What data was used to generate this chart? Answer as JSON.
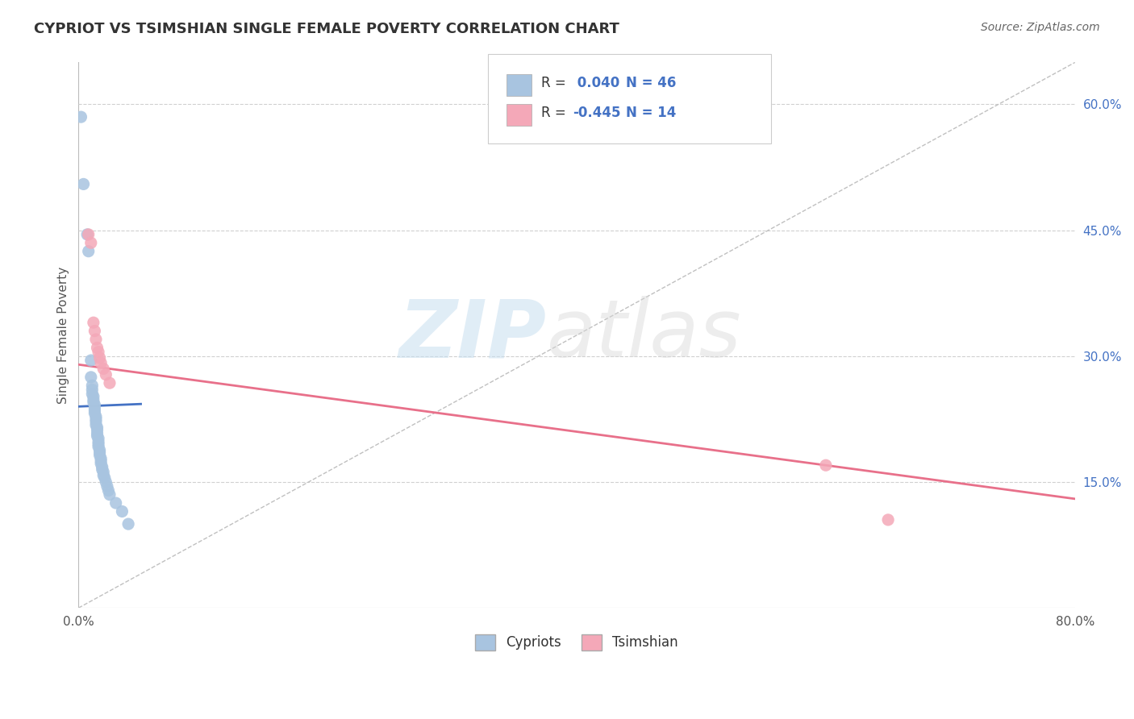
{
  "title": "CYPRIOT VS TSIMSHIAN SINGLE FEMALE POVERTY CORRELATION CHART",
  "source": "Source: ZipAtlas.com",
  "ylabel": "Single Female Poverty",
  "xlim": [
    0.0,
    0.8
  ],
  "ylim": [
    0.0,
    0.65
  ],
  "yticks_right": [
    0.15,
    0.3,
    0.45,
    0.6
  ],
  "ytick_labels_right": [
    "15.0%",
    "30.0%",
    "45.0%",
    "60.0%"
  ],
  "cypriot_R": 0.04,
  "cypriot_N": 46,
  "tsimshian_R": -0.445,
  "tsimshian_N": 14,
  "cypriot_color": "#a8c4e0",
  "tsimshian_color": "#f4a8b8",
  "cypriot_line_color": "#4472c4",
  "tsimshian_line_color": "#e8708a",
  "cypriot_x": [
    0.002,
    0.004,
    0.007,
    0.008,
    0.01,
    0.01,
    0.011,
    0.011,
    0.011,
    0.012,
    0.012,
    0.012,
    0.013,
    0.013,
    0.013,
    0.013,
    0.014,
    0.014,
    0.014,
    0.014,
    0.015,
    0.015,
    0.015,
    0.015,
    0.016,
    0.016,
    0.016,
    0.016,
    0.017,
    0.017,
    0.017,
    0.018,
    0.018,
    0.018,
    0.019,
    0.019,
    0.02,
    0.02,
    0.021,
    0.022,
    0.023,
    0.024,
    0.025,
    0.03,
    0.035,
    0.04
  ],
  "cypriot_y": [
    0.585,
    0.505,
    0.445,
    0.425,
    0.295,
    0.275,
    0.265,
    0.26,
    0.255,
    0.252,
    0.248,
    0.245,
    0.242,
    0.238,
    0.235,
    0.232,
    0.228,
    0.225,
    0.222,
    0.218,
    0.215,
    0.212,
    0.208,
    0.205,
    0.202,
    0.198,
    0.195,
    0.192,
    0.188,
    0.185,
    0.182,
    0.178,
    0.175,
    0.172,
    0.168,
    0.165,
    0.162,
    0.158,
    0.155,
    0.15,
    0.145,
    0.14,
    0.135,
    0.125,
    0.115,
    0.1
  ],
  "tsimshian_x": [
    0.008,
    0.01,
    0.012,
    0.013,
    0.014,
    0.015,
    0.016,
    0.017,
    0.018,
    0.02,
    0.022,
    0.025,
    0.6,
    0.65
  ],
  "tsimshian_y": [
    0.445,
    0.435,
    0.34,
    0.33,
    0.32,
    0.31,
    0.305,
    0.298,
    0.292,
    0.285,
    0.278,
    0.268,
    0.17,
    0.105
  ],
  "tsimshian_line_x0": 0.0,
  "tsimshian_line_y0": 0.29,
  "tsimshian_line_x1": 0.8,
  "tsimshian_line_y1": 0.13,
  "cypriot_line_x0": 0.0,
  "cypriot_line_y0": 0.24,
  "cypriot_line_x1": 0.05,
  "cypriot_line_y1": 0.243
}
